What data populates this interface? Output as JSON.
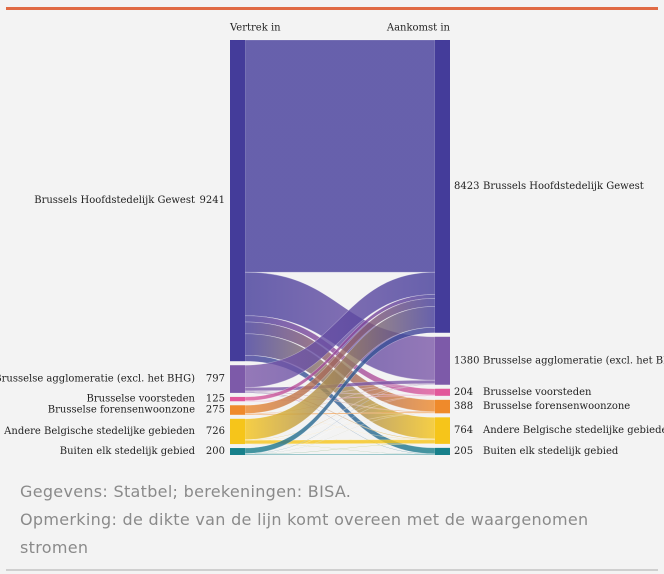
{
  "chart_data": {
    "type": "sankey",
    "source_title": "Vertrek in",
    "target_title": "Aankomst in",
    "sources": [
      {
        "name": "Brussels Hoofdstedelijk Gewest",
        "value": 9241,
        "color": "#443c9a"
      },
      {
        "name": "Brusselse agglomeratie (excl. het BHG)",
        "value": 797,
        "color": "#7d5aa9"
      },
      {
        "name": "Brusselse voorsteden",
        "value": 125,
        "color": "#e2589b"
      },
      {
        "name": "Brusselse forensenwoonzone",
        "value": 275,
        "color": "#ef8a2b"
      },
      {
        "name": "Andere Belgische stedelijke gebieden",
        "value": 726,
        "color": "#f6c51a"
      },
      {
        "name": "Buiten elk stedelijk gebied",
        "value": 200,
        "color": "#17808b"
      }
    ],
    "targets": [
      {
        "name": "Brussels Hoofdstedelijk Gewest",
        "value": 8423,
        "color": "#443c9a"
      },
      {
        "name": "Brusselse agglomeratie (excl. het BHG)",
        "value": 1380,
        "color": "#7d5aa9"
      },
      {
        "name": "Brusselse voorsteden",
        "value": 204,
        "color": "#e2589b"
      },
      {
        "name": "Brusselse forensenwoonzone",
        "value": 388,
        "color": "#ef8a2b"
      },
      {
        "name": "Andere Belgische stedelijke gebieden",
        "value": 764,
        "color": "#f6c51a"
      },
      {
        "name": "Buiten elk stedelijk gebied",
        "value": 205,
        "color": "#17808b"
      }
    ],
    "links": [
      {
        "source": 0,
        "target": 0,
        "value": 6681
      },
      {
        "source": 0,
        "target": 1,
        "value": 1250
      },
      {
        "source": 0,
        "target": 2,
        "value": 180
      },
      {
        "source": 0,
        "target": 3,
        "value": 340
      },
      {
        "source": 0,
        "target": 4,
        "value": 620
      },
      {
        "source": 0,
        "target": 5,
        "value": 170
      },
      {
        "source": 1,
        "target": 0,
        "value": 640
      },
      {
        "source": 1,
        "target": 1,
        "value": 100
      },
      {
        "source": 1,
        "target": 2,
        "value": 10
      },
      {
        "source": 1,
        "target": 3,
        "value": 17
      },
      {
        "source": 1,
        "target": 4,
        "value": 20
      },
      {
        "source": 1,
        "target": 5,
        "value": 10
      },
      {
        "source": 2,
        "target": 0,
        "value": 110
      },
      {
        "source": 2,
        "target": 1,
        "value": 5
      },
      {
        "source": 2,
        "target": 2,
        "value": 10
      },
      {
        "source": 3,
        "target": 0,
        "value": 235
      },
      {
        "source": 3,
        "target": 1,
        "value": 10
      },
      {
        "source": 3,
        "target": 3,
        "value": 25
      },
      {
        "source": 3,
        "target": 4,
        "value": 5
      },
      {
        "source": 4,
        "target": 0,
        "value": 600
      },
      {
        "source": 4,
        "target": 1,
        "value": 10
      },
      {
        "source": 4,
        "target": 2,
        "value": 2
      },
      {
        "source": 4,
        "target": 3,
        "value": 3
      },
      {
        "source": 4,
        "target": 4,
        "value": 106
      },
      {
        "source": 4,
        "target": 5,
        "value": 5
      },
      {
        "source": 5,
        "target": 0,
        "value": 157
      },
      {
        "source": 5,
        "target": 1,
        "value": 5
      },
      {
        "source": 5,
        "target": 2,
        "value": 2
      },
      {
        "source": 5,
        "target": 3,
        "value": 3
      },
      {
        "source": 5,
        "target": 4,
        "value": 13
      },
      {
        "source": 5,
        "target": 5,
        "value": 20
      }
    ]
  },
  "notes": [
    "Gegevens: Statbel; berekeningen: BISA.",
    "Opmerking: de dikte van de lijn komt overeen met de waargenomen stromen"
  ]
}
